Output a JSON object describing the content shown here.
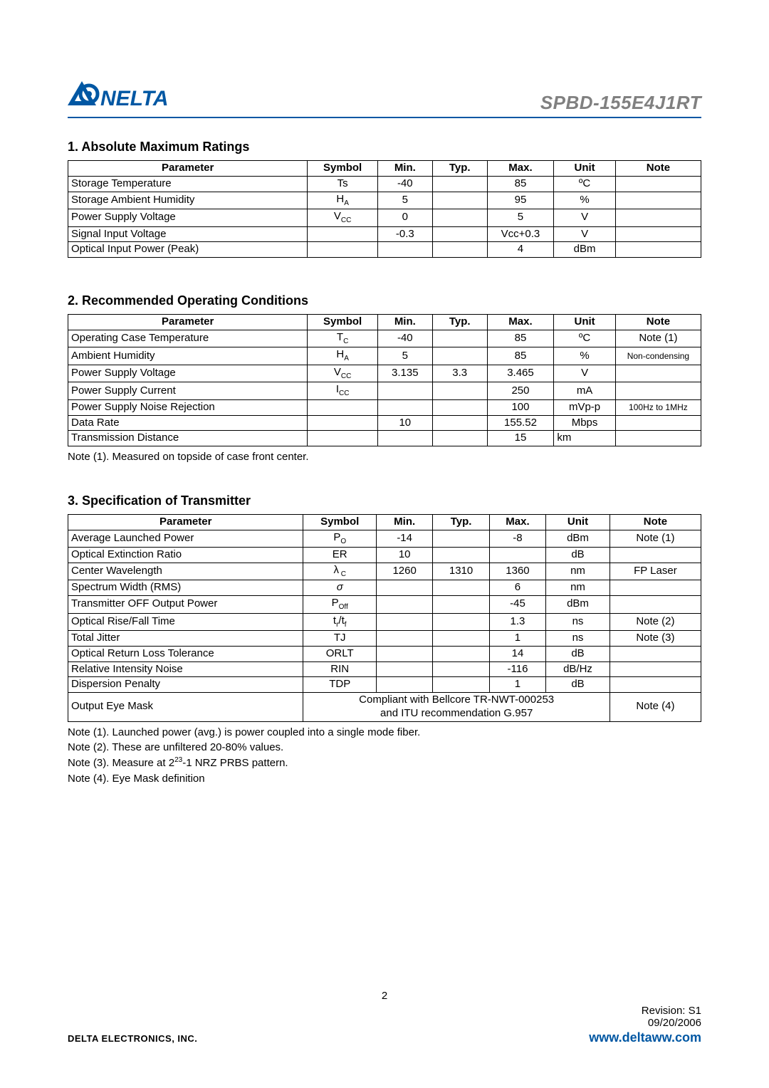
{
  "header": {
    "part_number": "SPBD-155E4J1RT",
    "logo_primary": "#0057a3",
    "logo_text": "NELTA"
  },
  "sections": {
    "s1": {
      "title": "1. Absolute Maximum Ratings"
    },
    "s2": {
      "title": "2. Recommended Operating Conditions"
    },
    "s3": {
      "title": "3. Specification of Transmitter"
    }
  },
  "table_headers": {
    "parameter": "Parameter",
    "symbol": "Symbol",
    "min": "Min.",
    "typ": "Typ.",
    "max": "Max.",
    "unit": "Unit",
    "note": "Note"
  },
  "t1": {
    "r0": {
      "p": "Storage Temperature",
      "s": "Ts",
      "min": "-40",
      "typ": "",
      "max": "85",
      "u": "ºC",
      "n": ""
    },
    "r1": {
      "p": "Storage Ambient Humidity",
      "s_pre": "H",
      "s_sub": "A",
      "min": "5",
      "typ": "",
      "max": "95",
      "u": "%",
      "n": ""
    },
    "r2": {
      "p": "Power Supply Voltage",
      "s_pre": "V",
      "s_sub": "CC",
      "min": "0",
      "typ": "",
      "max": "5",
      "u": "V",
      "n": ""
    },
    "r3": {
      "p": "Signal Input Voltage",
      "s": "",
      "min": "-0.3",
      "typ": "",
      "max": "Vcc+0.3",
      "u": "V",
      "n": ""
    },
    "r4": {
      "p": "Optical Input Power (Peak)",
      "s": "",
      "min": "",
      "typ": "",
      "max": "4",
      "u": "dBm",
      "n": ""
    }
  },
  "t2": {
    "r0": {
      "p": "Operating Case Temperature",
      "s_pre": "T",
      "s_sub": "C",
      "min": "-40",
      "typ": "",
      "max": "85",
      "u": "ºC",
      "n": "Note (1)"
    },
    "r1": {
      "p": "Ambient Humidity",
      "s_pre": "H",
      "s_sub": "A",
      "min": "5",
      "typ": "",
      "max": "85",
      "u": "%",
      "n": "Non-condensing",
      "n_small": true
    },
    "r2": {
      "p": "Power Supply Voltage",
      "s_pre": "V",
      "s_sub": "CC",
      "min": "3.135",
      "typ": "3.3",
      "max": "3.465",
      "u": "V",
      "n": ""
    },
    "r3": {
      "p": "Power Supply Current",
      "s_pre": "I",
      "s_sub": "CC",
      "min": "",
      "typ": "",
      "max": "250",
      "u": "mA",
      "n": ""
    },
    "r4": {
      "p": "Power Supply Noise Rejection",
      "s": "",
      "min": "",
      "typ": "",
      "max": "100",
      "u": "mVp-p",
      "n": "100Hz to 1MHz",
      "n_small": true
    },
    "r5": {
      "p": "Data Rate",
      "s": "",
      "min": "10",
      "typ": "",
      "max": "155.52",
      "u": "Mbps",
      "n": ""
    },
    "r6": {
      "p": "Transmission Distance",
      "s": "",
      "min": "",
      "typ": "",
      "max": "15",
      "u": "km",
      "n": "",
      "u_left": true
    }
  },
  "t2_note": "Note (1). Measured on topside of case front center.",
  "t3": {
    "r0": {
      "p": "Average Launched Power",
      "s_pre": "P",
      "s_sub": "O",
      "min": "-14",
      "typ": "",
      "max": "-8",
      "u": "dBm",
      "n": "Note (1)"
    },
    "r1": {
      "p": "Optical Extinction Ratio",
      "s": "ER",
      "min": "10",
      "typ": "",
      "max": "",
      "u": "dB",
      "n": ""
    },
    "r2": {
      "p": "Center Wavelength",
      "s_pre": "λ",
      "s_sub": " C",
      "min": "1260",
      "typ": "1310",
      "max": "1360",
      "u": "nm",
      "n": "FP Laser"
    },
    "r3": {
      "p": "Spectrum Width (RMS)",
      "s": "σ",
      "s_italic": true,
      "min": "",
      "typ": "",
      "max": "6",
      "u": "nm",
      "n": ""
    },
    "r4": {
      "p": "Transmitter OFF Output Power",
      "s_pre": "P",
      "s_sub": "Off",
      "min": "",
      "typ": "",
      "max": "-45",
      "u": "dBm",
      "n": ""
    },
    "r5": {
      "p": "Optical Rise/Fall Time",
      "s_html": "t<sub style='font-size:10px'>r</sub>/t<sub style='font-size:10px'>f</sub>",
      "min": "",
      "typ": "",
      "max": "1.3",
      "u": "ns",
      "n": "Note (2)"
    },
    "r6": {
      "p": "Total Jitter",
      "s": "TJ",
      "min": "",
      "typ": "",
      "max": "1",
      "u": "ns",
      "n": "Note (3)"
    },
    "r7": {
      "p": "Optical Return Loss Tolerance",
      "s": "ORLT",
      "min": "",
      "typ": "",
      "max": "14",
      "u": "dB",
      "n": ""
    },
    "r8": {
      "p": "Relative Intensity Noise",
      "s": "RIN",
      "min": "",
      "typ": "",
      "max": "-116",
      "u": "dB/Hz",
      "n": ""
    },
    "r9": {
      "p": "Dispersion Penalty",
      "s": "TDP",
      "min": "",
      "typ": "",
      "max": "1",
      "u": "dB",
      "n": ""
    },
    "r10": {
      "p": "Output Eye Mask",
      "span_l1": "Compliant with Bellcore TR-NWT-000253",
      "span_l2": "and ITU recommendation G.957",
      "n": "Note (4)"
    }
  },
  "t3_notes": {
    "n1": "Note (1). Launched power (avg.) is power coupled into a single mode fiber.",
    "n2": "Note (2). These are unfiltered 20-80% values.",
    "n3_pre": "Note (3). Measure at 2",
    "n3_sup": "23",
    "n3_post": "-1 NRZ PRBS pattern.",
    "n4": "Note (4). Eye Mask definition"
  },
  "footer": {
    "page": "2",
    "rev": "Revision:  S1",
    "date": "09/20/2006",
    "company": "DELTA ELECTRONICS, INC.",
    "url": "www.deltaww.com"
  }
}
